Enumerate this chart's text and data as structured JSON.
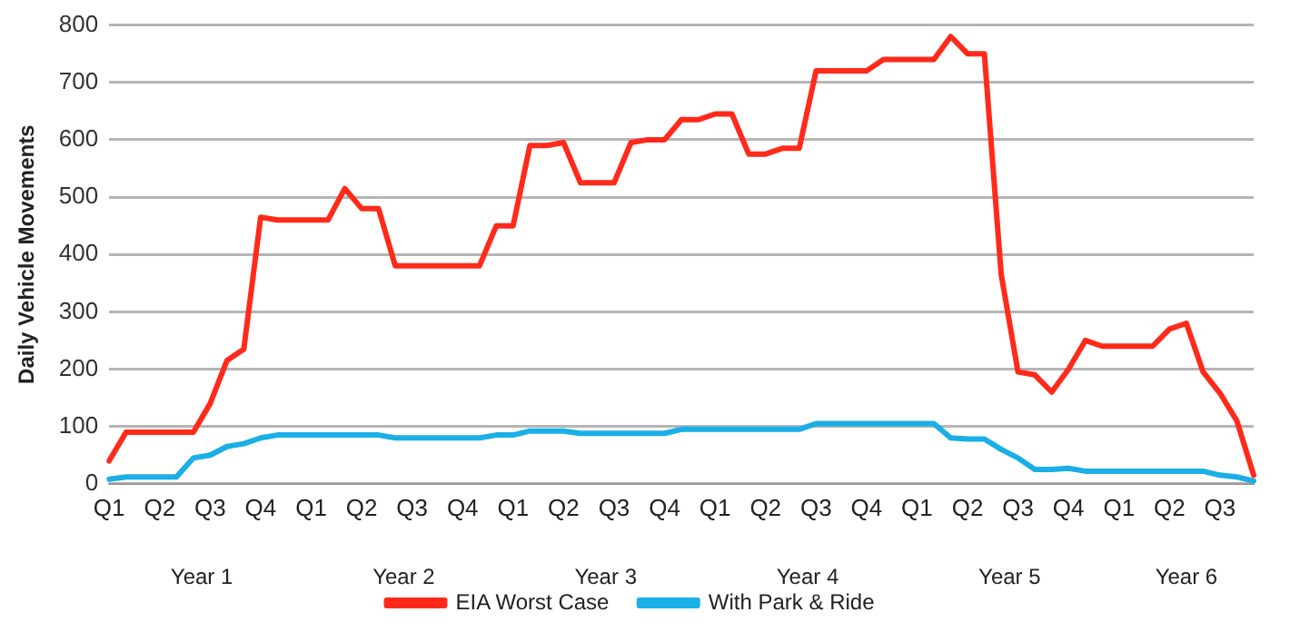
{
  "chart_data": {
    "type": "line",
    "ylabel": "Daily Vehicle Movements",
    "categories": [
      "Q1",
      null,
      null,
      "Q2",
      null,
      null,
      "Q3",
      null,
      null,
      "Q4",
      null,
      null,
      "Q1",
      null,
      null,
      "Q2",
      null,
      null,
      "Q3",
      null,
      null,
      "Q4",
      null,
      null,
      "Q1",
      null,
      null,
      "Q2",
      null,
      null,
      "Q3",
      null,
      null,
      "Q4",
      null,
      null,
      "Q1",
      null,
      null,
      "Q2",
      null,
      null,
      "Q3",
      null,
      null,
      "Q4",
      null,
      null,
      "Q1",
      null,
      null,
      "Q2",
      null,
      null,
      "Q3",
      null,
      null,
      "Q4",
      null,
      null,
      "Q1",
      null,
      null,
      "Q2",
      null,
      null,
      "Q3",
      null,
      null
    ],
    "annotations": [
      "Year 1",
      "Year 2",
      "Year 3",
      "Year 4",
      "Year 5",
      "Year 6"
    ],
    "series": [
      {
        "name": "EIA Worst Case",
        "color": "#ff2a1a",
        "values": [
          40,
          90,
          90,
          90,
          90,
          90,
          140,
          215,
          235,
          465,
          460,
          460,
          460,
          460,
          515,
          480,
          480,
          380,
          380,
          380,
          380,
          380,
          380,
          450,
          450,
          590,
          590,
          595,
          525,
          525,
          525,
          595,
          600,
          600,
          635,
          635,
          645,
          645,
          575,
          575,
          585,
          585,
          720,
          720,
          720,
          720,
          740,
          740,
          740,
          740,
          780,
          750,
          750,
          365,
          195,
          190,
          160,
          200,
          250,
          240,
          240,
          240,
          240,
          270,
          280,
          195,
          158,
          110,
          15
        ]
      },
      {
        "name": "With Park & Ride",
        "color": "#1aafe6",
        "values": [
          8,
          12,
          12,
          12,
          12,
          45,
          50,
          65,
          70,
          80,
          85,
          85,
          85,
          85,
          85,
          85,
          85,
          80,
          80,
          80,
          80,
          80,
          80,
          85,
          85,
          92,
          92,
          92,
          88,
          88,
          88,
          88,
          88,
          88,
          95,
          95,
          95,
          95,
          95,
          95,
          95,
          95,
          105,
          105,
          105,
          105,
          105,
          105,
          105,
          105,
          80,
          78,
          78,
          60,
          45,
          25,
          25,
          27,
          22,
          22,
          22,
          22,
          22,
          22,
          22,
          22,
          15,
          12,
          5
        ]
      }
    ],
    "ylim": [
      0,
      800
    ],
    "yticks": [
      0,
      100,
      200,
      300,
      400,
      500,
      600,
      700,
      800
    ],
    "grid": "y",
    "legend": "bottom",
    "marker": "none",
    "line_style": "solid"
  }
}
